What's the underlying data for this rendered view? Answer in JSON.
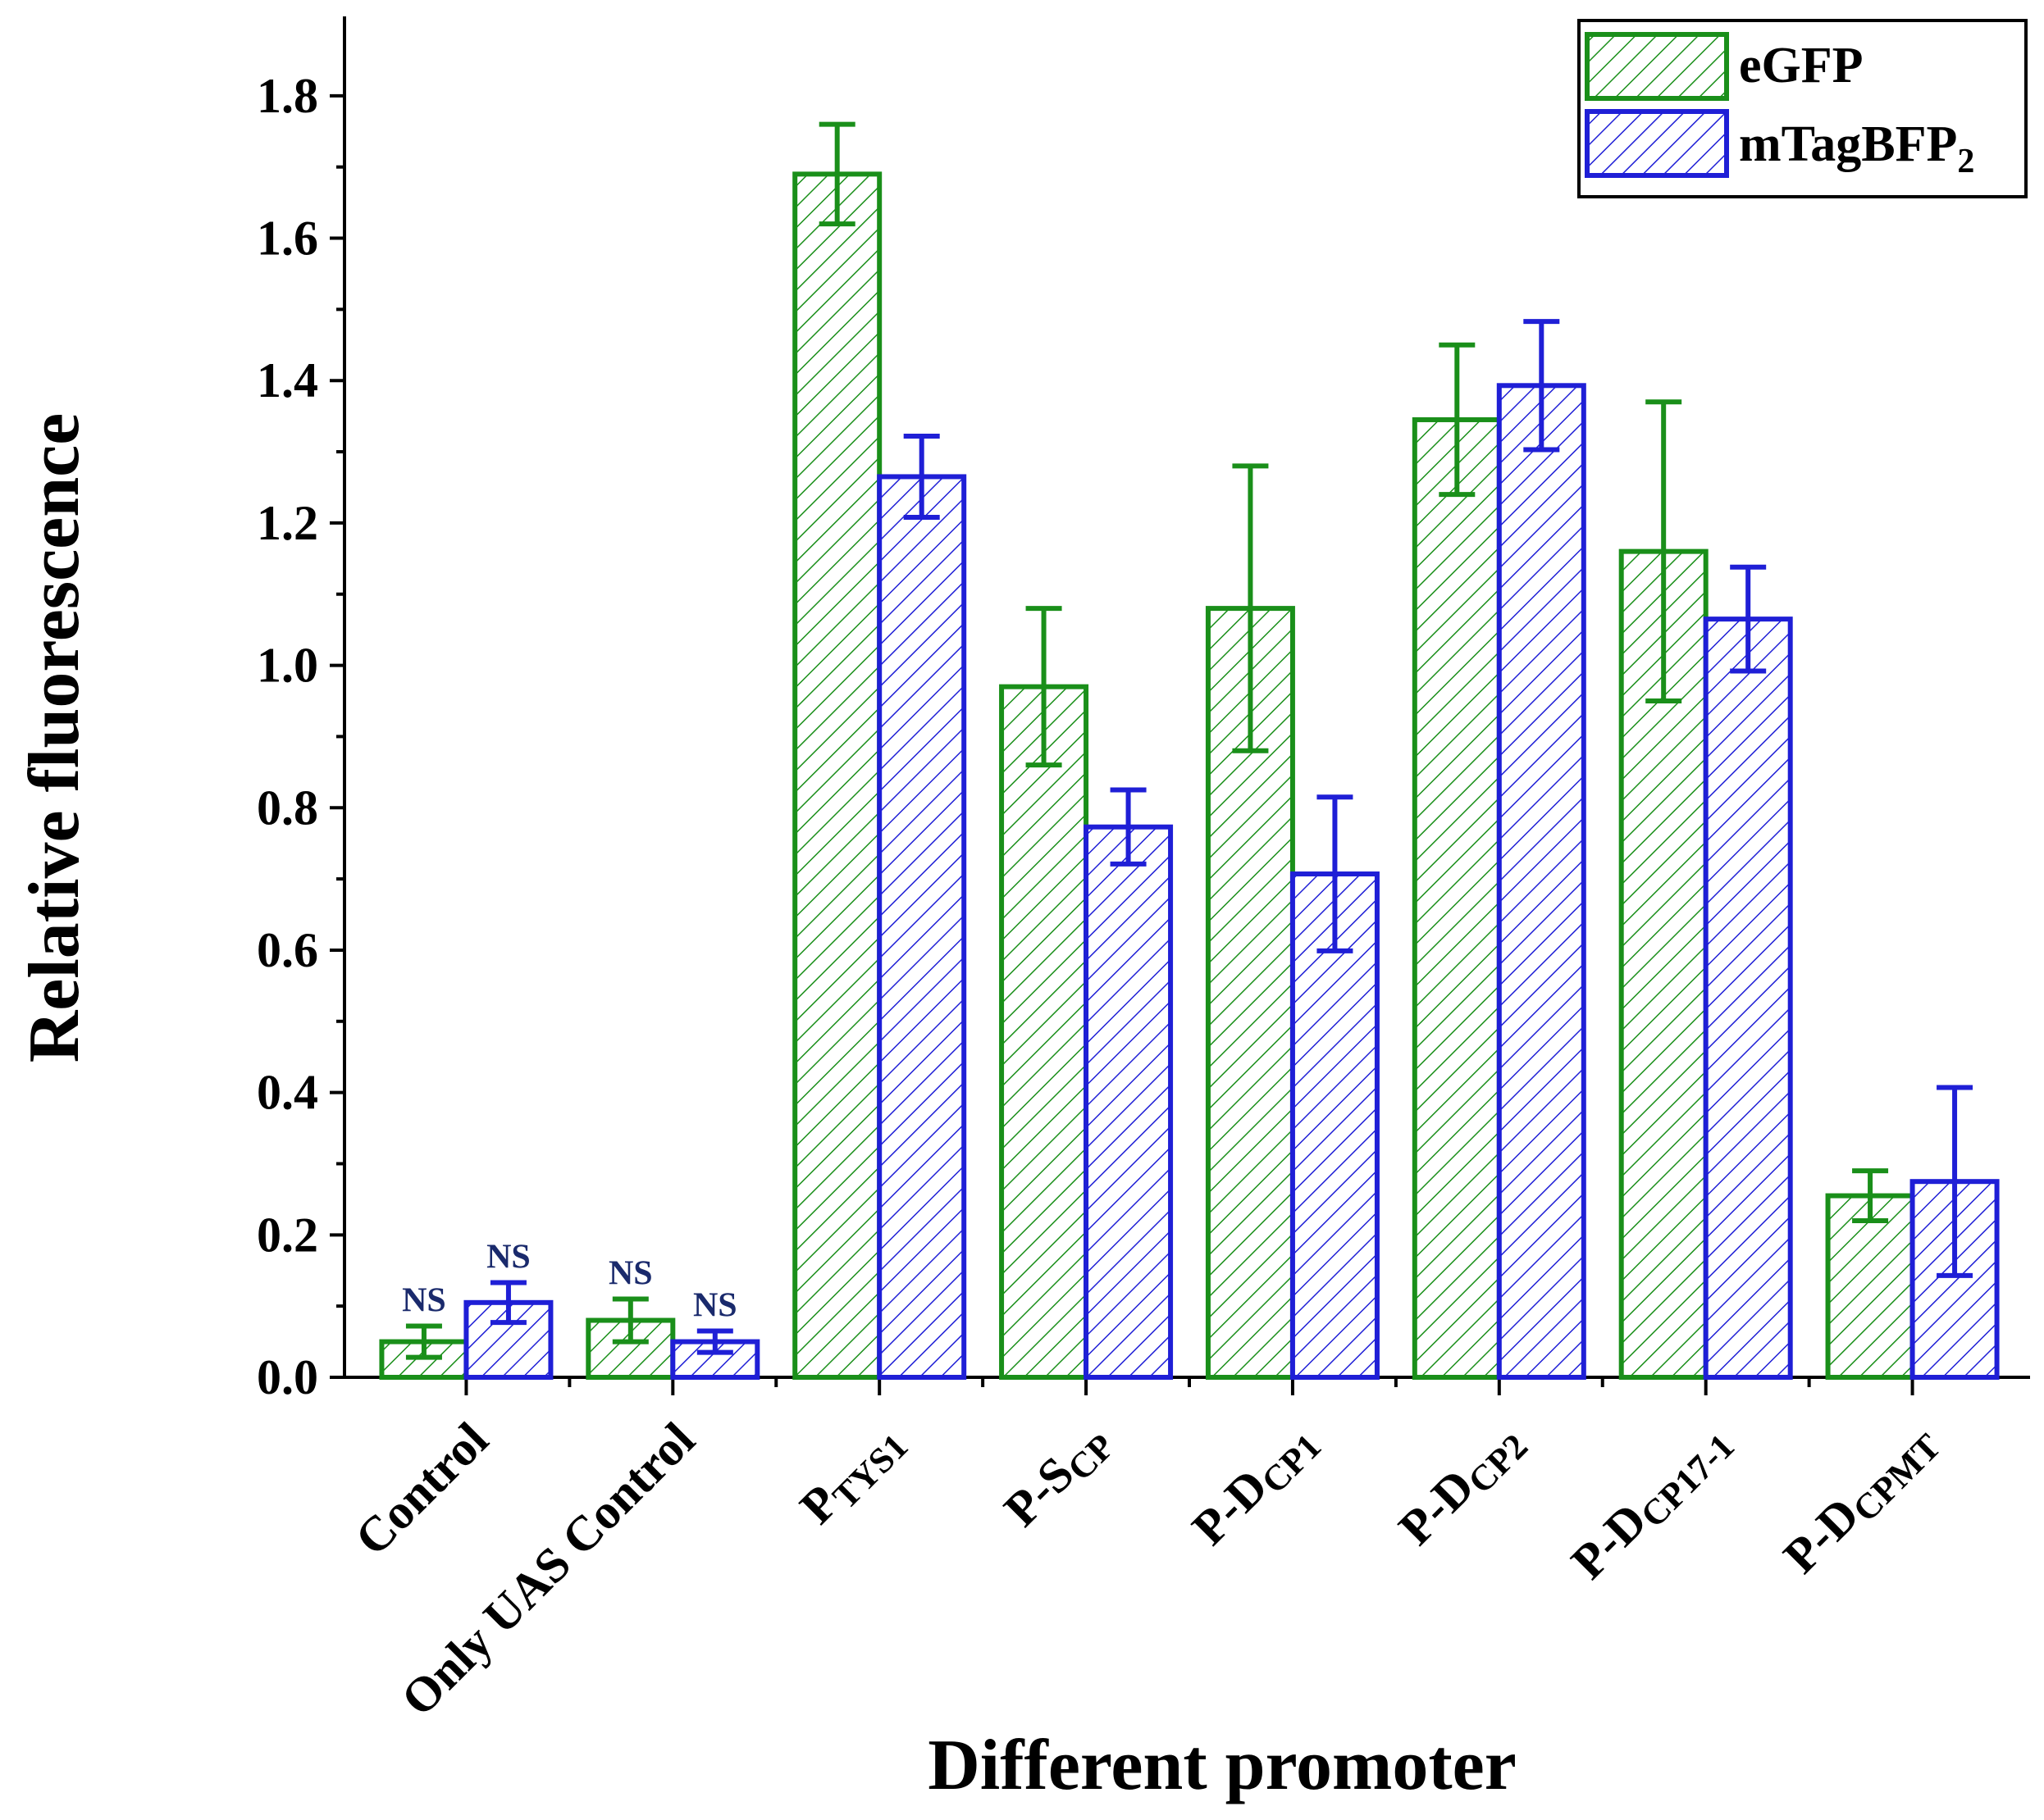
{
  "chart_data": {
    "type": "bar",
    "title": "",
    "xlabel": "Different promoter",
    "ylabel": "Relative fluorescence",
    "ylim": [
      0,
      1.9
    ],
    "yticks": [
      "0.0",
      "0.2",
      "0.4",
      "0.6",
      "0.8",
      "1.0",
      "1.2",
      "1.4",
      "1.6",
      "1.8"
    ],
    "categories": [
      {
        "main": "Control",
        "sub": ""
      },
      {
        "main": "Only UAS Control",
        "sub": ""
      },
      {
        "main": "P",
        "sub": "TYS1"
      },
      {
        "main": "P-S",
        "sub": "CP"
      },
      {
        "main": "P-D",
        "sub": "CP1"
      },
      {
        "main": "P-D",
        "sub": "CP2"
      },
      {
        "main": "P-D",
        "sub": "CP17-1"
      },
      {
        "main": "P-D",
        "sub": "CPMT"
      }
    ],
    "series": [
      {
        "name": "eGFP",
        "color": "#1a8f1a",
        "values": [
          0.05,
          0.08,
          1.69,
          0.97,
          1.08,
          1.345,
          1.16,
          0.255
        ],
        "errors": [
          0.022,
          0.03,
          0.07,
          0.11,
          0.2,
          0.105,
          0.21,
          0.035
        ],
        "annotations": [
          "NS",
          "NS",
          "",
          "",
          "",
          "",
          "",
          ""
        ]
      },
      {
        "name": "mTagBFP",
        "name_sub": "2",
        "color": "#1f1fd6",
        "values": [
          0.105,
          0.05,
          1.265,
          0.773,
          0.707,
          1.393,
          1.065,
          0.275
        ],
        "errors": [
          0.028,
          0.015,
          0.057,
          0.052,
          0.108,
          0.09,
          0.073,
          0.132
        ],
        "annotations": [
          "NS",
          "NS",
          "",
          "",
          "",
          "",
          "",
          ""
        ]
      }
    ],
    "legend": "top-right",
    "grid": false
  }
}
